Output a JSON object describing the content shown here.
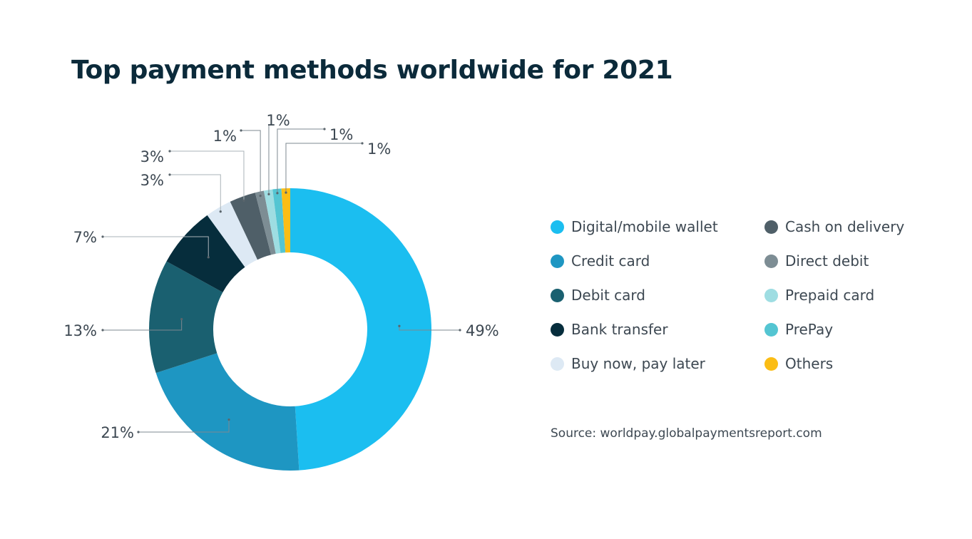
{
  "chart_data": {
    "type": "pie",
    "title": "Top payment methods worldwide for 2021",
    "categories": [
      "Digital/mobile wallet",
      "Credit card",
      "Debit card",
      "Bank transfer",
      "Buy now, pay later",
      "Cash on delivery",
      "Direct debit",
      "Prepaid card",
      "PrePay",
      "Others"
    ],
    "values": [
      49,
      21,
      13,
      7,
      3,
      3,
      1,
      1,
      1,
      1
    ],
    "value_labels": [
      "49%",
      "21%",
      "13%",
      "7%",
      "3%",
      "3%",
      "1%",
      "1%",
      "1%",
      "1%"
    ],
    "colors": [
      "#1bbef0",
      "#1e96c2",
      "#1a6070",
      "#062d3c",
      "#dde9f4",
      "#4f5f68",
      "#7d8d94",
      "#9edde2",
      "#54c5d2",
      "#fbbd15"
    ],
    "donut": true,
    "legend_position": "right",
    "source": "Source: worldpay.globalpaymentsreport.com"
  }
}
